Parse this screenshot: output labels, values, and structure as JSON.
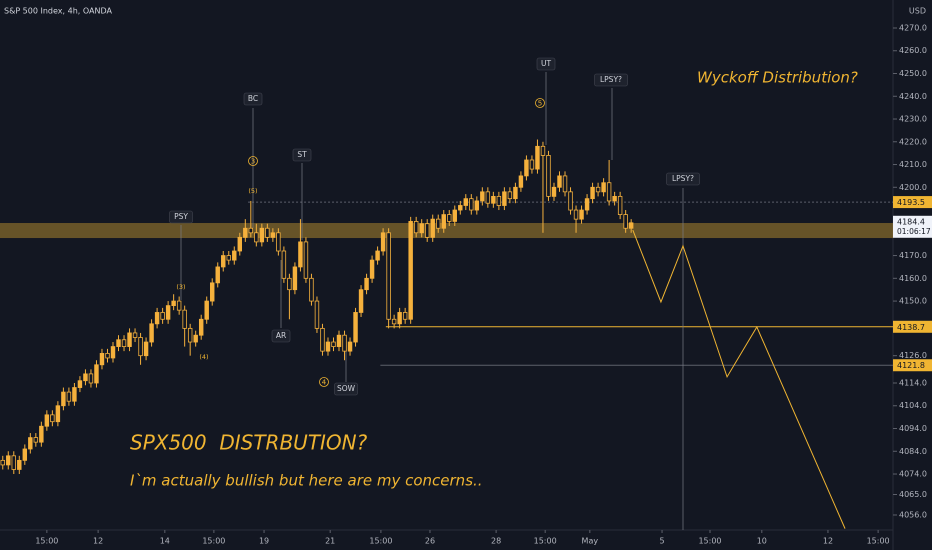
{
  "chart_data": {
    "type": "candlestick",
    "title": "S&P 500 Index, 4h, OANDA",
    "currency": "USD",
    "note": "Wyckoff Distribution?",
    "headline": "SPX500  DISTRBUTION?",
    "subtitle": "I`m actually bullish but here are my concerns..",
    "countdown": "01:06:17",
    "up_color": "#f5b13d",
    "down_color": "#f5b13d",
    "ylim": [
      4049.4,
      4282.3
    ],
    "xlim": [
      0,
      162
    ],
    "yticks": [
      {
        "value": 4270,
        "label": "4270.0"
      },
      {
        "value": 4260,
        "label": "4260.0"
      },
      {
        "value": 4250,
        "label": "4250.0"
      },
      {
        "value": 4240,
        "label": "4240.0"
      },
      {
        "value": 4230,
        "label": "4230.0"
      },
      {
        "value": 4220,
        "label": "4220.0"
      },
      {
        "value": 4210,
        "label": "4210.0"
      },
      {
        "value": 4200,
        "label": "4200.0"
      },
      {
        "value": 4170,
        "label": "4170.0"
      },
      {
        "value": 4160,
        "label": "4160.0"
      },
      {
        "value": 4150,
        "label": "4150.0"
      },
      {
        "value": 4126,
        "label": "4126.0"
      },
      {
        "value": 4114,
        "label": "4114.0"
      },
      {
        "value": 4104,
        "label": "4104.0"
      },
      {
        "value": 4094,
        "label": "4094.0"
      },
      {
        "value": 4084,
        "label": "4084.0"
      },
      {
        "value": 4074,
        "label": "4074.0"
      },
      {
        "value": 4065,
        "label": "4065.0"
      },
      {
        "value": 4056,
        "label": "4056.0"
      }
    ],
    "xticks": [
      {
        "value": 8.5,
        "label": "15:00"
      },
      {
        "value": 17.8,
        "label": "12"
      },
      {
        "value": 29.9,
        "label": "14"
      },
      {
        "value": 38.8,
        "label": "15:00"
      },
      {
        "value": 47.9,
        "label": "19"
      },
      {
        "value": 59.9,
        "label": "21"
      },
      {
        "value": 69.1,
        "label": "15:00"
      },
      {
        "value": 78.0,
        "label": "26"
      },
      {
        "value": 90.0,
        "label": "28"
      },
      {
        "value": 98.9,
        "label": "15:00"
      },
      {
        "value": 107.0,
        "label": "May"
      },
      {
        "value": 120.1,
        "label": "5"
      },
      {
        "value": 128.8,
        "label": "15:00"
      },
      {
        "value": 138.2,
        "label": "10"
      },
      {
        "value": 150.2,
        "label": "12"
      },
      {
        "value": 159.3,
        "label": "15:00"
      }
    ],
    "ohlc": [
      [
        4080,
        4082,
        4076,
        4078
      ],
      [
        4078,
        4084,
        4076,
        4082
      ],
      [
        4082,
        4084,
        4074,
        4076
      ],
      [
        4076,
        4082,
        4074,
        4080
      ],
      [
        4080,
        4087,
        4078,
        4085
      ],
      [
        4085,
        4092,
        4083,
        4090
      ],
      [
        4090,
        4092,
        4086,
        4088
      ],
      [
        4088,
        4097,
        4086,
        4095
      ],
      [
        4095,
        4102,
        4093,
        4100
      ],
      [
        4100,
        4102,
        4095,
        4097
      ],
      [
        4097,
        4106,
        4095,
        4104
      ],
      [
        4104,
        4112,
        4102,
        4110
      ],
      [
        4110,
        4112,
        4104,
        4106
      ],
      [
        4106,
        4114,
        4104,
        4112
      ],
      [
        4112,
        4117,
        4110,
        4115
      ],
      [
        4115,
        4120,
        4113,
        4118
      ],
      [
        4118,
        4120,
        4112,
        4114
      ],
      [
        4114,
        4124,
        4112,
        4122
      ],
      [
        4122,
        4129,
        4120,
        4127
      ],
      [
        4127,
        4129,
        4123,
        4125
      ],
      [
        4125,
        4132,
        4123,
        4130
      ],
      [
        4130,
        4135,
        4128,
        4133
      ],
      [
        4133,
        4135,
        4128,
        4130
      ],
      [
        4130,
        4138,
        4128,
        4136
      ],
      [
        4136,
        4138,
        4132,
        4134
      ],
      [
        4134,
        4136,
        4122,
        4126
      ],
      [
        4126,
        4134,
        4124,
        4132
      ],
      [
        4132,
        4142,
        4130,
        4140
      ],
      [
        4140,
        4147,
        4138,
        4145
      ],
      [
        4145,
        4147,
        4140,
        4142
      ],
      [
        4142,
        4150,
        4140,
        4148
      ],
      [
        4148,
        4153,
        4146,
        4150
      ],
      [
        4150,
        4152,
        4144,
        4146
      ],
      [
        4146,
        4148,
        4130,
        4138
      ],
      [
        4138,
        4140,
        4126,
        4132
      ],
      [
        4132,
        4137,
        4130,
        4135
      ],
      [
        4135,
        4144,
        4133,
        4142
      ],
      [
        4142,
        4152,
        4140,
        4150
      ],
      [
        4150,
        4160,
        4148,
        4158
      ],
      [
        4158,
        4167,
        4156,
        4165
      ],
      [
        4165,
        4172,
        4163,
        4170
      ],
      [
        4170,
        4172,
        4166,
        4168
      ],
      [
        4168,
        4174,
        4166,
        4172
      ],
      [
        4172,
        4180,
        4170,
        4178
      ],
      [
        4178,
        4186,
        4176,
        4182
      ],
      [
        4182,
        4194,
        4178,
        4180
      ],
      [
        4180,
        4184,
        4174,
        4176
      ],
      [
        4176,
        4184,
        4174,
        4182
      ],
      [
        4182,
        4184,
        4176,
        4178
      ],
      [
        4178,
        4182,
        4176,
        4180
      ],
      [
        4180,
        4182,
        4170,
        4172
      ],
      [
        4172,
        4174,
        4158,
        4160
      ],
      [
        4160,
        4162,
        4142,
        4155
      ],
      [
        4155,
        4167,
        4153,
        4165
      ],
      [
        4165,
        4186,
        4163,
        4176
      ],
      [
        4176,
        4178,
        4158,
        4160
      ],
      [
        4160,
        4162,
        4148,
        4150
      ],
      [
        4150,
        4152,
        4136,
        4138
      ],
      [
        4138,
        4140,
        4126,
        4128
      ],
      [
        4128,
        4134,
        4126,
        4132
      ],
      [
        4132,
        4134,
        4128,
        4130
      ],
      [
        4130,
        4137,
        4128,
        4135
      ],
      [
        4135,
        4137,
        4124,
        4128
      ],
      [
        4128,
        4134,
        4126,
        4132
      ],
      [
        4132,
        4147,
        4130,
        4145
      ],
      [
        4145,
        4157,
        4143,
        4155
      ],
      [
        4155,
        4162,
        4153,
        4160
      ],
      [
        4160,
        4170,
        4158,
        4168
      ],
      [
        4168,
        4174,
        4166,
        4172
      ],
      [
        4172,
        4182,
        4170,
        4180
      ],
      [
        4180,
        4182,
        4138,
        4142
      ],
      [
        4142,
        4144,
        4138,
        4140
      ],
      [
        4140,
        4147,
        4138,
        4145
      ],
      [
        4145,
        4147,
        4140,
        4142
      ],
      [
        4142,
        4187,
        4140,
        4185
      ],
      [
        4185,
        4187,
        4178,
        4180
      ],
      [
        4180,
        4186,
        4178,
        4184
      ],
      [
        4184,
        4186,
        4176,
        4178
      ],
      [
        4178,
        4188,
        4176,
        4186
      ],
      [
        4186,
        4188,
        4180,
        4182
      ],
      [
        4182,
        4190,
        4180,
        4188
      ],
      [
        4188,
        4190,
        4183,
        4185
      ],
      [
        4185,
        4192,
        4183,
        4190
      ],
      [
        4190,
        4194,
        4188,
        4192
      ],
      [
        4192,
        4197,
        4190,
        4195
      ],
      [
        4195,
        4197,
        4188,
        4190
      ],
      [
        4190,
        4196,
        4188,
        4194
      ],
      [
        4194,
        4200,
        4192,
        4198
      ],
      [
        4198,
        4200,
        4191,
        4193
      ],
      [
        4193,
        4198,
        4191,
        4196
      ],
      [
        4196,
        4198,
        4190,
        4192
      ],
      [
        4192,
        4200,
        4190,
        4198
      ],
      [
        4198,
        4200,
        4193,
        4195
      ],
      [
        4195,
        4202,
        4193,
        4200
      ],
      [
        4200,
        4207,
        4198,
        4205
      ],
      [
        4205,
        4214,
        4203,
        4212
      ],
      [
        4212,
        4214,
        4206,
        4208
      ],
      [
        4208,
        4221,
        4206,
        4218
      ],
      [
        4218,
        4220,
        4180,
        4214
      ],
      [
        4214,
        4216,
        4194,
        4196
      ],
      [
        4196,
        4202,
        4194,
        4200
      ],
      [
        4200,
        4207,
        4198,
        4205
      ],
      [
        4205,
        4207,
        4196,
        4198
      ],
      [
        4198,
        4200,
        4188,
        4190
      ],
      [
        4190,
        4192,
        4180,
        4186
      ],
      [
        4186,
        4192,
        4184,
        4190
      ],
      [
        4190,
        4197,
        4188,
        4195
      ],
      [
        4195,
        4202,
        4193,
        4200
      ],
      [
        4200,
        4202,
        4196,
        4198
      ],
      [
        4198,
        4204,
        4196,
        4202
      ],
      [
        4202,
        4212,
        4192,
        4194
      ],
      [
        4194,
        4198,
        4192,
        4196
      ],
      [
        4196,
        4198,
        4186,
        4188
      ],
      [
        4188,
        4190,
        4180,
        4182
      ],
      [
        4182,
        4186,
        4180,
        4184.4
      ]
    ],
    "zone": {
      "low": 4177.7,
      "high": 4184.3,
      "color": "rgba(240,181,50,0.38)"
    },
    "levels": [
      {
        "value": 4193.5,
        "start": 45,
        "color": "#5d606b",
        "tag_color": "#f0b532"
      },
      {
        "value": 4138.7,
        "start": 70,
        "color": "#f0b532",
        "tag_color": "#f0b532"
      },
      {
        "value": 4121.8,
        "start": 69,
        "color": "#5d606b",
        "tag_color": "#f0b532"
      }
    ],
    "projection": {
      "color": "#f0b532",
      "x": [
        114.8,
        119.9,
        123.9,
        131.9,
        137.3,
        153.3
      ],
      "values": [
        4181.2,
        4149.6,
        4174.2,
        4116.7,
        4138.6,
        4050
      ]
    },
    "labels": [
      "PSY",
      "BC",
      "ST",
      "AR",
      "SOW",
      "UT",
      "LPSY?",
      "LPSY?"
    ],
    "circled": [
      "3",
      "4",
      "5"
    ],
    "waves": [
      "(5)",
      "(3)",
      "(4)"
    ]
  }
}
